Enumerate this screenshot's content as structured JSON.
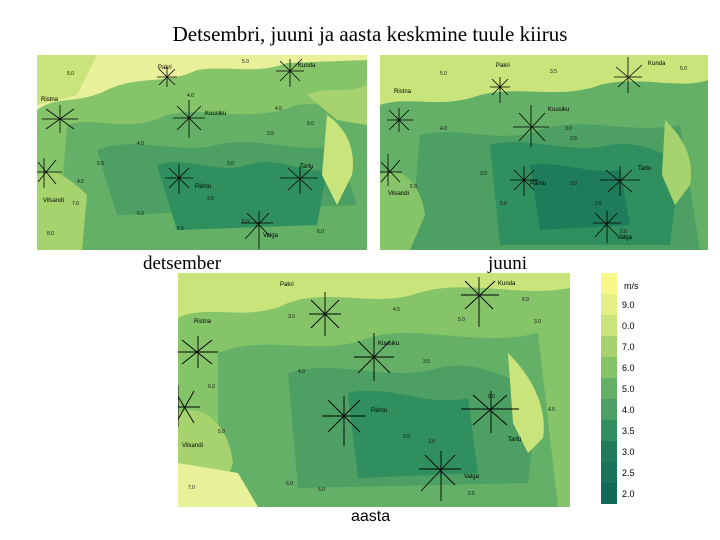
{
  "title": "Detsembri, juuni ja aasta keskmine tuule kiirus",
  "colors": {
    "c1": "#f8f88a",
    "c2": "#c9e47a",
    "c3": "#a6d36e",
    "c4": "#86c46a",
    "c5": "#63b066",
    "c6": "#4d9f63",
    "c7": "#2f8f5e",
    "c8": "#1f7c5a",
    "c9": "#0f6a56",
    "land_bg": "#76b868",
    "sea": "#e9f09a"
  },
  "maps": [
    {
      "caption": "detsember",
      "places": [
        "Pakri",
        "Kunda",
        "Ristna",
        "Kuusiku",
        "Tartu",
        "Pärnu",
        "Vilsandi",
        "Valga"
      ],
      "isolines": [
        "5.0",
        "5.0",
        "4.0",
        "4.5",
        "5.0",
        "3.5",
        "3.0",
        "4.0",
        "5.0",
        "4.5",
        "3.5",
        "5.5",
        "6.0",
        "7.0",
        "6.0",
        "8.0",
        "6.0"
      ]
    },
    {
      "caption": "juuni",
      "places": [
        "Pakri",
        "Kunda",
        "Ristna",
        "Kuusiku",
        "Tartu",
        "Pärnu",
        "Vilsandi",
        "Valga"
      ],
      "isolines": [
        "5.0",
        "3.5",
        "3.0",
        "5.0",
        "2.5",
        "3.0",
        "3.5",
        "4.0",
        "5.0",
        "3.0",
        "5.0",
        "2.0"
      ]
    },
    {
      "caption": "aasta",
      "places": [
        "Pakri",
        "Kunda",
        "Ristna",
        "Kuusiku",
        "Pärnu",
        "Tartu",
        "Vilsandi",
        "Valga"
      ],
      "isolines": [
        "6.0",
        "5.0",
        "3.0",
        "3.0",
        "4.5",
        "3.5",
        "5.0",
        "6.0",
        "5.0",
        "4.0",
        "3.0",
        "2.5",
        "7.0",
        "6.0",
        "5.0",
        "4.5",
        "3.0"
      ]
    }
  ],
  "legend": {
    "unit": "m/s",
    "items": [
      {
        "label": "",
        "color": "#f8f88a"
      },
      {
        "label": "9.0",
        "color": "#e6ef84"
      },
      {
        "label": "0.0",
        "color": "#c9e47a"
      },
      {
        "label": "7.0",
        "color": "#a6d36e"
      },
      {
        "label": "6.0",
        "color": "#86c46a"
      },
      {
        "label": "5.0",
        "color": "#63b066"
      },
      {
        "label": "4.0",
        "color": "#4d9f63"
      },
      {
        "label": "3.5",
        "color": "#2f8f5e"
      },
      {
        "label": "3.0",
        "color": "#1f7c5a"
      },
      {
        "label": "2.5",
        "color": "#17735a"
      },
      {
        "label": "2.0",
        "color": "#0f6a56"
      }
    ]
  }
}
